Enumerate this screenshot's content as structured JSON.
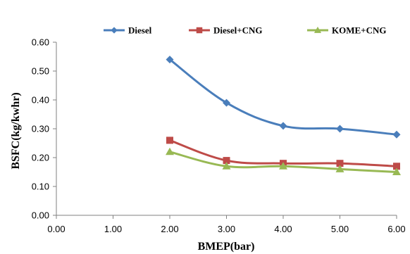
{
  "chart_data": {
    "type": "line",
    "xlabel": "BMEP(bar)",
    "ylabel": "BSFC(kg/kwhr)",
    "xlim": [
      0,
      6
    ],
    "ylim": [
      0,
      0.6
    ],
    "x_ticks": [
      "0.00",
      "1.00",
      "2.00",
      "3.00",
      "4.00",
      "5.00",
      "6.00"
    ],
    "y_ticks": [
      "0.00",
      "0.10",
      "0.20",
      "0.30",
      "0.40",
      "0.50",
      "0.60"
    ],
    "grid": false,
    "legend_position": "top",
    "x": [
      2,
      3,
      4,
      5,
      6
    ],
    "series": [
      {
        "name": "Diesel",
        "color": "#4a7ebb",
        "marker": "diamond",
        "values": [
          0.54,
          0.39,
          0.31,
          0.3,
          0.28
        ]
      },
      {
        "name": "Diesel+CNG",
        "color": "#be4b48",
        "marker": "square",
        "values": [
          0.26,
          0.19,
          0.18,
          0.18,
          0.17
        ]
      },
      {
        "name": "KOME+CNG",
        "color": "#98b954",
        "marker": "triangle",
        "values": [
          0.22,
          0.17,
          0.17,
          0.16,
          0.15
        ]
      }
    ]
  }
}
